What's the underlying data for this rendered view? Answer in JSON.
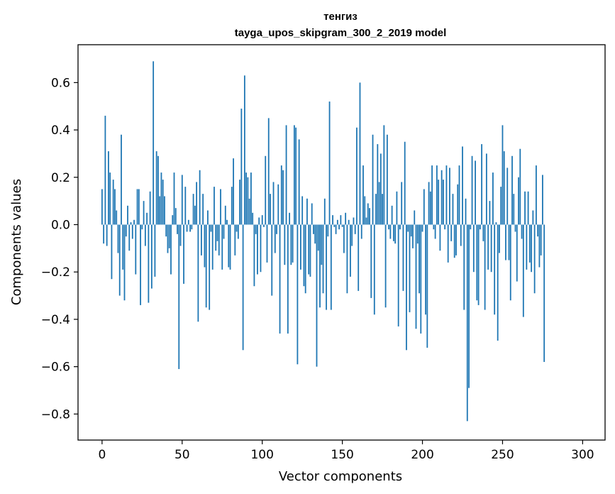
{
  "chart_data": {
    "type": "bar",
    "title": "тенгиз",
    "subtitle": "tayga_upos_skipgram_300_2_2019 model",
    "xlabel": "Vector components",
    "ylabel": "Components values",
    "xlim": [
      -15,
      314
    ],
    "ylim": [
      -0.91,
      0.76
    ],
    "xticks": [
      0,
      50,
      100,
      150,
      200,
      250,
      300
    ],
    "xtick_labels": [
      "0",
      "50",
      "100",
      "150",
      "200",
      "250",
      "300"
    ],
    "yticks": [
      -0.8,
      -0.6,
      -0.4,
      -0.2,
      0.0,
      0.2,
      0.4,
      0.6
    ],
    "ytick_labels": [
      "−0.8",
      "−0.6",
      "−0.4",
      "−0.2",
      "0.0",
      "0.2",
      "0.4",
      "0.6"
    ],
    "bar_color": "#1f77b4",
    "grid": false,
    "values": [
      0.15,
      -0.08,
      0.46,
      -0.09,
      0.31,
      0.22,
      -0.23,
      0.19,
      0.15,
      0.06,
      -0.12,
      -0.3,
      0.38,
      -0.19,
      -0.32,
      -0.05,
      0.08,
      -0.11,
      0.01,
      -0.06,
      0.02,
      -0.21,
      0.15,
      0.15,
      -0.34,
      -0.02,
      0.1,
      -0.09,
      0.05,
      -0.33,
      0.14,
      -0.27,
      0.69,
      -0.22,
      0.31,
      0.29,
      0.12,
      0.22,
      0.19,
      0.12,
      -0.05,
      -0.12,
      -0.1,
      -0.21,
      0.04,
      0.22,
      0.07,
      -0.04,
      -0.61,
      -0.09,
      0.21,
      -0.25,
      0.16,
      -0.03,
      0.02,
      -0.03,
      -0.02,
      0.13,
      0.08,
      0.18,
      -0.41,
      0.23,
      -0.13,
      0.13,
      -0.18,
      -0.35,
      0.06,
      -0.36,
      -0.03,
      -0.19,
      0.16,
      -0.11,
      -0.07,
      -0.13,
      0.15,
      -0.19,
      -0.06,
      0.08,
      0.02,
      -0.18,
      -0.19,
      0.16,
      0.28,
      -0.13,
      -0.03,
      -0.06,
      0.19,
      0.49,
      -0.53,
      0.63,
      0.22,
      0.2,
      0.11,
      0.22,
      0.05,
      -0.26,
      -0.04,
      -0.21,
      0.03,
      -0.2,
      0.04,
      -0.01,
      0.29,
      -0.16,
      0.45,
      0.13,
      -0.3,
      0.18,
      -0.12,
      -0.04,
      0.17,
      -0.46,
      0.25,
      0.23,
      -0.17,
      0.42,
      -0.46,
      0.05,
      -0.17,
      -0.16,
      0.42,
      0.41,
      -0.59,
      0.36,
      -0.19,
      0.12,
      -0.26,
      -0.29,
      0.11,
      -0.21,
      -0.22,
      0.09,
      -0.04,
      -0.08,
      -0.6,
      -0.11,
      -0.35,
      -0.17,
      -0.29,
      0.11,
      -0.36,
      -0.05,
      0.52,
      -0.36,
      0.04,
      -0.01,
      -0.04,
      0.02,
      -0.02,
      0.04,
      -0.01,
      -0.12,
      0.05,
      -0.29,
      0.02,
      -0.22,
      -0.09,
      0.03,
      -0.04,
      0.41,
      -0.28,
      0.6,
      -0.06,
      0.25,
      0.12,
      0.03,
      0.09,
      0.07,
      -0.31,
      0.38,
      -0.38,
      0.13,
      0.34,
      0.18,
      0.3,
      0.13,
      0.42,
      -0.35,
      0.38,
      -0.02,
      -0.06,
      0.08,
      -0.07,
      -0.08,
      0.14,
      -0.43,
      -0.02,
      0.18,
      -0.28,
      0.35,
      -0.53,
      -0.03,
      -0.37,
      -0.05,
      -0.1,
      0.06,
      -0.44,
      -0.08,
      -0.29,
      -0.46,
      -0.03,
      0.15,
      -0.38,
      -0.52,
      0.18,
      0.14,
      0.25,
      -0.02,
      -0.06,
      0.25,
      0.19,
      -0.11,
      0.23,
      0.19,
      -0.02,
      0.25,
      -0.16,
      0.24,
      -0.07,
      0.13,
      -0.14,
      -0.13,
      0.17,
      0.25,
      -0.09,
      0.33,
      -0.36,
      0.11,
      -0.83,
      -0.69,
      -0.02,
      0.29,
      -0.2,
      0.27,
      -0.32,
      -0.34,
      -0.02,
      0.34,
      -0.07,
      -0.36,
      0.3,
      -0.19,
      0.1,
      -0.2,
      0.22,
      -0.38,
      0.01,
      -0.49,
      -0.12,
      0.16,
      0.42,
      0.31,
      -0.15,
      0.24,
      -0.15,
      -0.32,
      0.29,
      0.13,
      -0.03,
      -0.24,
      0.2,
      0.32,
      -0.06,
      -0.39,
      0.14,
      -0.19,
      0.14,
      -0.16,
      -0.2,
      0.06,
      -0.29,
      0.25,
      -0.05,
      -0.18,
      -0.13,
      0.21,
      -0.58
    ]
  }
}
